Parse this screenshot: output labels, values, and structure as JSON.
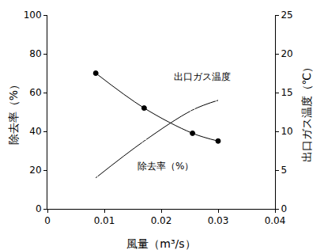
{
  "chart_data": {
    "type": "line",
    "x_label": "風量（m³/s）",
    "y_label": "除去率（%）",
    "y2_label": "出口ガス温度（℃）",
    "x": [
      0.0085,
      0.017,
      0.0255,
      0.03
    ],
    "series": [
      {
        "name": "除去率（%）",
        "color": "#000000",
        "marker": "open_circle",
        "values": [
          16,
          35,
          51,
          56
        ]
      },
      {
        "name": "出口ガス温度",
        "color": "#000000",
        "marker": "filled_circle",
        "axis": "y2",
        "values": [
          17.5,
          13,
          9.75,
          8.75
        ]
      }
    ],
    "annotations": [
      {
        "text": "出口ガス温度",
        "x": 0.022,
        "y": 68
      },
      {
        "text": "除去率（%）",
        "x": 0.0155,
        "y": 22
      }
    ],
    "xlim": [
      0,
      0.04
    ],
    "xticks": [
      0,
      0.01,
      0.02,
      0.03,
      0.04
    ],
    "ylim": [
      0,
      100
    ],
    "yticks": [
      0,
      20,
      40,
      60,
      80,
      100
    ],
    "y2lim": [
      0,
      25
    ],
    "y2ticks": [
      0,
      5,
      10,
      15,
      20,
      25
    ],
    "grid": false
  }
}
